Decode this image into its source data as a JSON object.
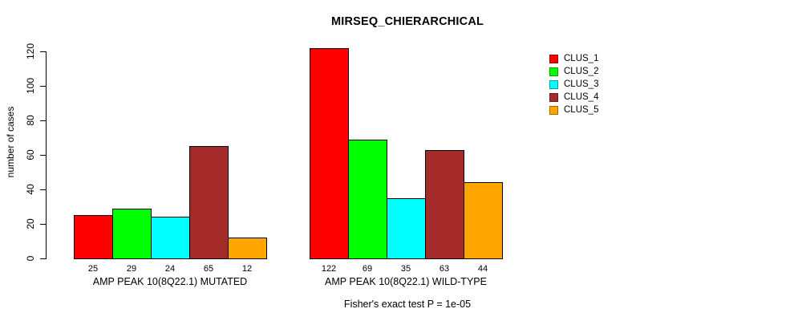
{
  "chart_data": {
    "type": "bar",
    "title": "MIRSEQ_CHIERARCHICAL",
    "ylabel": "number of cases",
    "ylim": [
      0,
      120
    ],
    "yticks": [
      0,
      20,
      40,
      60,
      80,
      100,
      120
    ],
    "grid": false,
    "legend_position": "right",
    "legend": [
      {
        "label": "CLUS_1",
        "color": "#FF0000"
      },
      {
        "label": "CLUS_2",
        "color": "#00FF00"
      },
      {
        "label": "CLUS_3",
        "color": "#00FFFF"
      },
      {
        "label": "CLUS_4",
        "color": "#A52A2A"
      },
      {
        "label": "CLUS_5",
        "color": "#FFA500"
      }
    ],
    "groups": [
      {
        "label": "AMP PEAK 10(8Q22.1) MUTATED",
        "values": [
          25,
          29,
          24,
          65,
          12
        ]
      },
      {
        "label": "AMP PEAK 10(8Q22.1) WILD-TYPE",
        "values": [
          122,
          69,
          35,
          63,
          44
        ]
      }
    ],
    "show_value_labels": true,
    "annotation": "Fisher's exact test P = 1e-05"
  }
}
